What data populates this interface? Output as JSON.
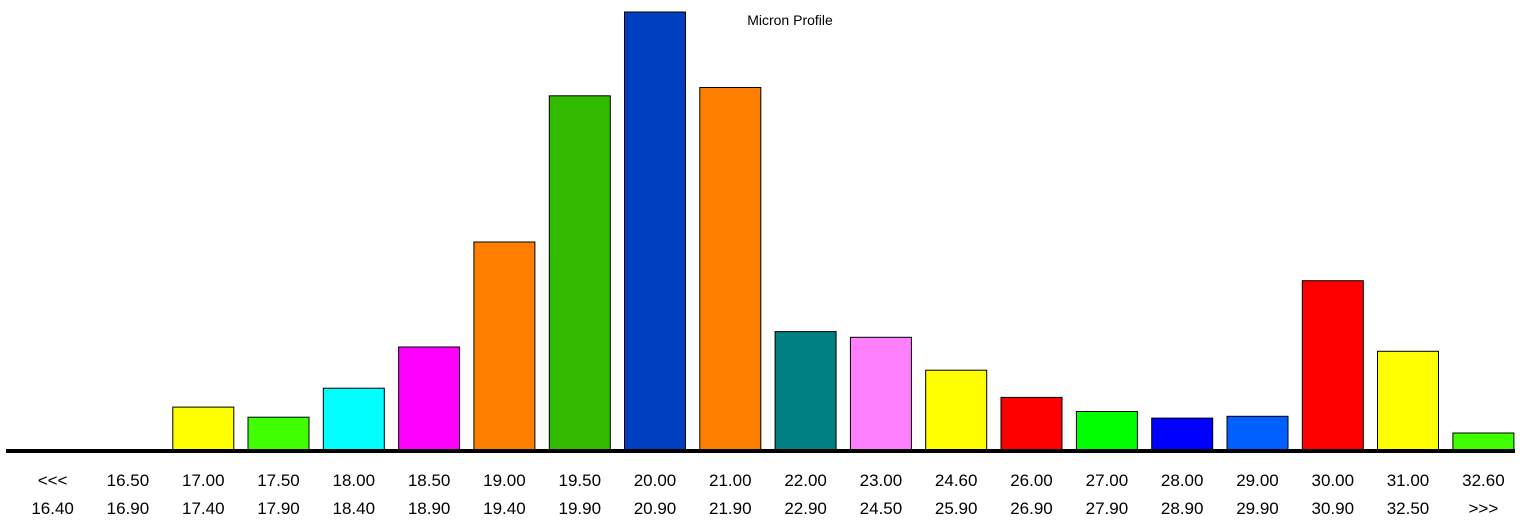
{
  "chart_data": {
    "type": "bar",
    "title": "Micron Profile",
    "xlabel": "",
    "ylabel": "",
    "grid": false,
    "legend": "none",
    "ylim": [
      0,
      100
    ],
    "categories": [
      {
        "from": "<<<",
        "to": "16.40"
      },
      {
        "from": "16.50",
        "to": "16.90"
      },
      {
        "from": "17.00",
        "to": "17.40"
      },
      {
        "from": "17.50",
        "to": "17.90"
      },
      {
        "from": "18.00",
        "to": "18.40"
      },
      {
        "from": "18.50",
        "to": "18.90"
      },
      {
        "from": "19.00",
        "to": "19.40"
      },
      {
        "from": "19.50",
        "to": "19.90"
      },
      {
        "from": "20.00",
        "to": "20.90"
      },
      {
        "from": "21.00",
        "to": "21.90"
      },
      {
        "from": "22.00",
        "to": "22.90"
      },
      {
        "from": "23.00",
        "to": "24.50"
      },
      {
        "from": "24.60",
        "to": "25.90"
      },
      {
        "from": "26.00",
        "to": "26.90"
      },
      {
        "from": "27.00",
        "to": "27.90"
      },
      {
        "from": "28.00",
        "to": "28.90"
      },
      {
        "from": "29.00",
        "to": "29.90"
      },
      {
        "from": "30.00",
        "to": "30.90"
      },
      {
        "from": "31.00",
        "to": "32.50"
      },
      {
        "from": "32.60",
        "to": ">>>"
      }
    ],
    "values": [
      0,
      0,
      10.0,
      7.7,
      14.3,
      23.7,
      47.6,
      80.9,
      100,
      82.8,
      27.2,
      25.9,
      18.4,
      12.2,
      9.0,
      7.5,
      7.9,
      38.8,
      22.7,
      4.1
    ],
    "colors": [
      "#ffff00",
      "#ffff00",
      "#ffff00",
      "#40ff00",
      "#00ffff",
      "#ff00ff",
      "#ff8000",
      "#33bb00",
      "#0040c0",
      "#ff8000",
      "#008080",
      "#ff80ff",
      "#ffff00",
      "#ff0000",
      "#00ff00",
      "#0000ff",
      "#0060ff",
      "#ff0000",
      "#ffff00",
      "#40ff00"
    ]
  }
}
